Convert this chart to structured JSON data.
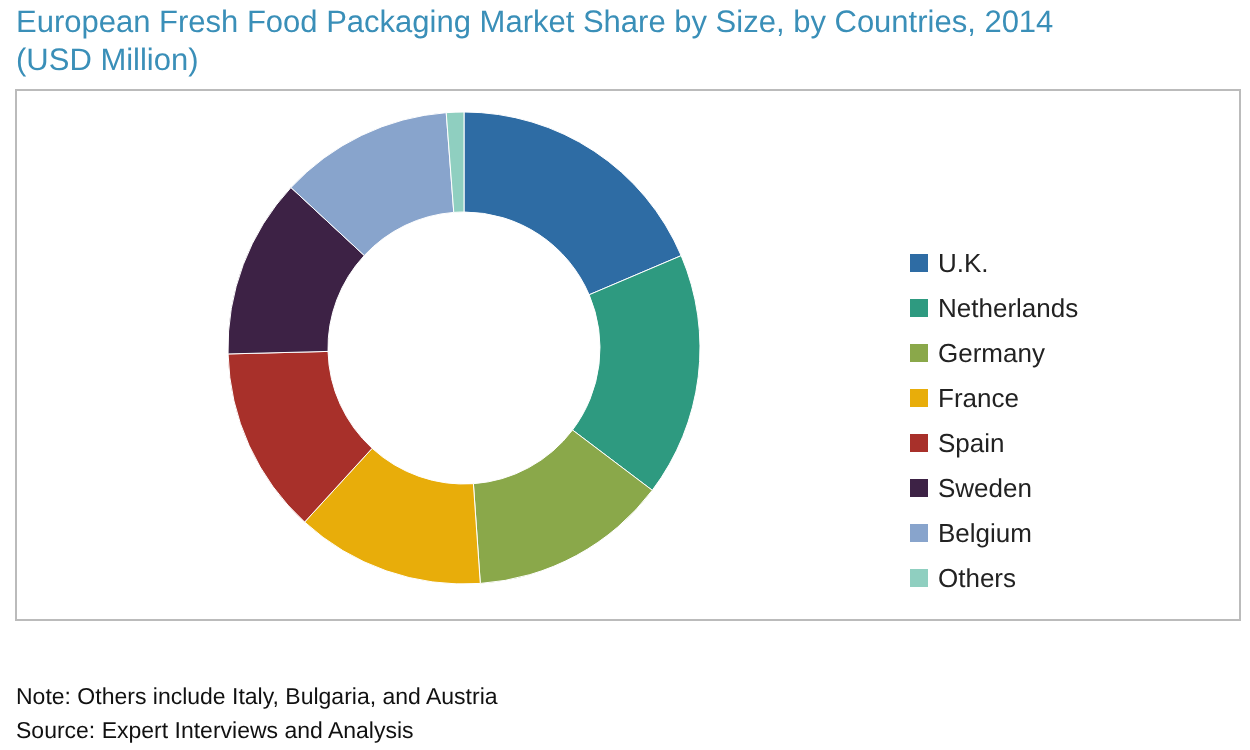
{
  "chart_data": {
    "type": "donut",
    "title": "European Fresh Food Packaging Market Share by Size, by Countries, 2014 (USD Million)",
    "categories": [
      "U.K.",
      "Netherlands",
      "Germany",
      "France",
      "Spain",
      "Sweden",
      "Belgium",
      "Others"
    ],
    "values": [
      18.6,
      16.7,
      13.6,
      12.9,
      12.8,
      12.3,
      11.9,
      1.2
    ],
    "colors": [
      "#2e6ca4",
      "#2e9a80",
      "#8aa84a",
      "#e8ad0a",
      "#a8302a",
      "#3d2245",
      "#88a4cc",
      "#8fcfc0"
    ],
    "legend": "right",
    "annotations": [
      "Note: Others include Italy, Bulgaria, and Austria",
      "Source: Expert Interviews and Analysis"
    ]
  }
}
